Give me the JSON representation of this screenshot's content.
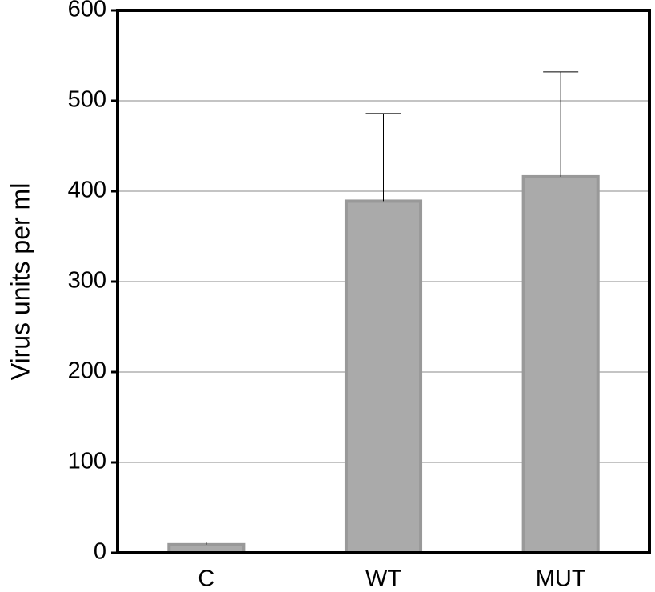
{
  "chart_data": {
    "type": "bar",
    "y_label": "Virus units per ml",
    "categories": [
      "C",
      "WT",
      "MUT"
    ],
    "values": [
      9,
      389,
      416
    ],
    "errors": [
      3,
      97,
      116
    ],
    "color": "#aaaaaa",
    "edge_color": "#999999",
    "ylim": [
      0,
      600
    ],
    "yticks": [
      0,
      100,
      200,
      300,
      400,
      500,
      600
    ],
    "grid": true
  }
}
